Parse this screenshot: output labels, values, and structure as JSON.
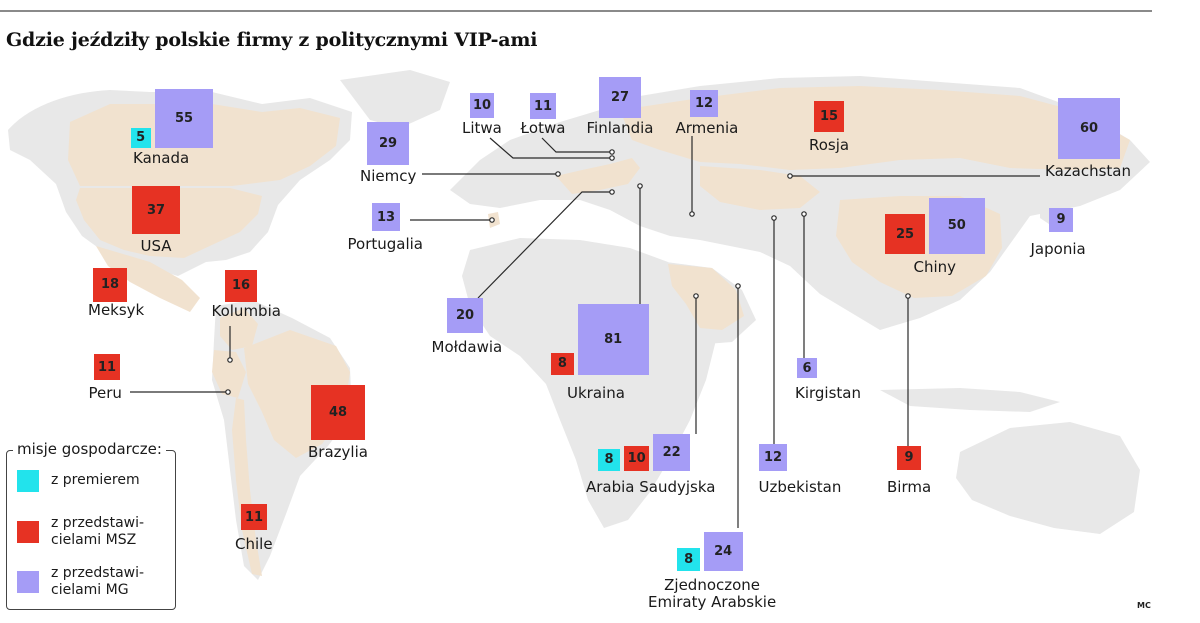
{
  "title": "Gdzie jeździły polskie firmy z politycznymi VIP-ami",
  "legend": {
    "title": "misje gospodarcze:",
    "items": [
      {
        "key": "prem",
        "color": "#22e3ec",
        "label": "z premierem"
      },
      {
        "key": "msz",
        "color": "#e63223",
        "label": "z przedstawi-\ncielami MSZ"
      },
      {
        "key": "mg",
        "color": "#a59cf6",
        "label": "z przedstawi-\ncielami MG"
      }
    ]
  },
  "colors": {
    "land": "#e8e8e8",
    "highlighted_country": "#f1e2cf",
    "prem": "#22e3ec",
    "msz": "#e63223",
    "mg": "#a59cf6"
  },
  "countries": [
    {
      "name": "Kanada",
      "prem": 5,
      "msz": null,
      "mg": 55
    },
    {
      "name": "USA",
      "prem": null,
      "msz": 37,
      "mg": null
    },
    {
      "name": "Meksyk",
      "prem": null,
      "msz": 18,
      "mg": null
    },
    {
      "name": "Kolumbia",
      "prem": null,
      "msz": 16,
      "mg": null
    },
    {
      "name": "Peru",
      "prem": null,
      "msz": 11,
      "mg": null
    },
    {
      "name": "Brazylia",
      "prem": null,
      "msz": 48,
      "mg": null
    },
    {
      "name": "Chile",
      "prem": null,
      "msz": 11,
      "mg": null
    },
    {
      "name": "Litwa",
      "prem": null,
      "msz": null,
      "mg": 10
    },
    {
      "name": "Łotwa",
      "prem": null,
      "msz": null,
      "mg": 11
    },
    {
      "name": "Finlandia",
      "prem": null,
      "msz": null,
      "mg": 27
    },
    {
      "name": "Armenia",
      "prem": null,
      "msz": null,
      "mg": 12
    },
    {
      "name": "Rosja",
      "prem": null,
      "msz": 15,
      "mg": null
    },
    {
      "name": "Kazachstan",
      "prem": null,
      "msz": null,
      "mg": 60
    },
    {
      "name": "Niemcy",
      "prem": null,
      "msz": null,
      "mg": 29
    },
    {
      "name": "Portugalia",
      "prem": null,
      "msz": null,
      "mg": 13
    },
    {
      "name": "Chiny",
      "prem": null,
      "msz": 25,
      "mg": 50
    },
    {
      "name": "Japonia",
      "prem": null,
      "msz": null,
      "mg": 9
    },
    {
      "name": "Mołdawia",
      "prem": null,
      "msz": null,
      "mg": 20
    },
    {
      "name": "Ukraina",
      "prem": null,
      "msz": 8,
      "mg": 81
    },
    {
      "name": "Kirgistan",
      "prem": null,
      "msz": null,
      "mg": 6
    },
    {
      "name": "Arabia Saudyjska",
      "prem": 8,
      "msz": 10,
      "mg": 22
    },
    {
      "name": "Uzbekistan",
      "prem": null,
      "msz": null,
      "mg": 12
    },
    {
      "name": "Birma",
      "prem": null,
      "msz": 9,
      "mg": null
    },
    {
      "name": "Zjednoczone\nEmiraty Arabskie",
      "prem": 8,
      "msz": null,
      "mg": 24
    }
  ],
  "credit": "MC"
}
